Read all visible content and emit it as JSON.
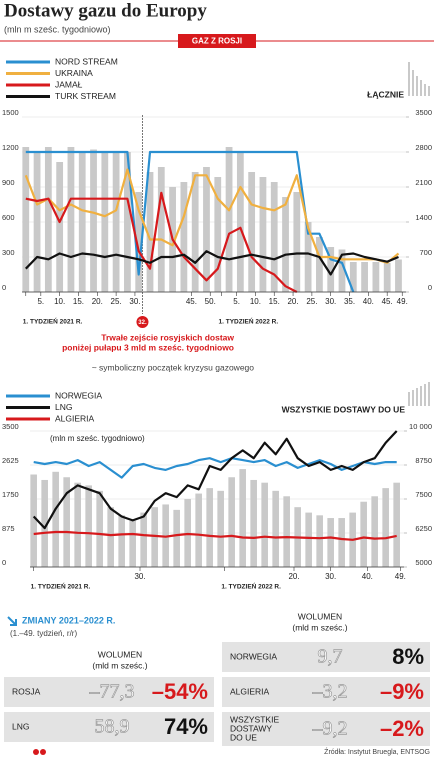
{
  "header": {
    "title": "Dostawy gazu do Europy",
    "subtitle": "(mln m sześc. tygodniowo)",
    "tag": "GAZ Z ROSJI"
  },
  "chart_data": [
    {
      "type": "line",
      "xlim": [
        0,
        102
      ],
      "x": [
        1,
        4,
        7,
        10,
        13,
        16,
        19,
        22,
        25,
        28,
        31,
        34,
        37,
        40,
        43,
        46,
        49,
        52,
        55,
        58,
        61,
        64,
        67,
        70,
        73,
        76,
        79,
        82,
        85,
        88,
        91,
        94,
        97,
        100
      ],
      "ylim": [
        0,
        1500
      ],
      "yticks": [
        0,
        300,
        600,
        900,
        1200,
        1500
      ],
      "y2lim": [
        0,
        3500
      ],
      "y2ticks": [
        0,
        700,
        1400,
        2100,
        2800,
        3500
      ],
      "grid": true,
      "xticks": [
        {
          "value": 1,
          "label": "1. TYDZIEŃ 2021 R."
        },
        {
          "value": 5,
          "label": "5."
        },
        {
          "value": 10,
          "label": "10."
        },
        {
          "value": 15,
          "label": "15."
        },
        {
          "value": 20,
          "label": "20."
        },
        {
          "value": 25,
          "label": "25."
        },
        {
          "value": 30,
          "label": "30."
        },
        {
          "value": 45,
          "label": "45."
        },
        {
          "value": 50,
          "label": "50."
        },
        {
          "value": 53,
          "label": "1. TYDZIEŃ 2022 R."
        },
        {
          "value": 57,
          "label": "5."
        },
        {
          "value": 62,
          "label": "10."
        },
        {
          "value": 67,
          "label": "15."
        },
        {
          "value": 72,
          "label": "20."
        },
        {
          "value": 77,
          "label": "25."
        },
        {
          "value": 82,
          "label": "30."
        },
        {
          "value": 87,
          "label": "35."
        },
        {
          "value": 92,
          "label": "40."
        },
        {
          "value": 97,
          "label": "45."
        },
        {
          "value": 101,
          "label": "49."
        }
      ],
      "series": [
        {
          "name": "ŁĄCZNIE",
          "type": "bar",
          "axis": "y2",
          "color": "#c9c9c9",
          "values": [
            2900,
            2800,
            2900,
            2600,
            2900,
            2800,
            2850,
            2800,
            2800,
            2800,
            2000,
            2400,
            2500,
            2100,
            2200,
            2400,
            2500,
            2300,
            2900,
            2800,
            2400,
            2300,
            2200,
            1900,
            2000,
            1400,
            1100,
            900,
            850,
            600,
            600,
            600,
            580,
            650
          ]
        },
        {
          "name": "NORD STREAM",
          "color": "#2a8fd0",
          "values": [
            1200,
            1200,
            1200,
            1200,
            1200,
            1200,
            1200,
            1200,
            1200,
            1200,
            150,
            1200,
            1200,
            1200,
            1200,
            1200,
            1200,
            1200,
            1200,
            1200,
            1200,
            1200,
            1200,
            1200,
            1200,
            500,
            500,
            280,
            250,
            0,
            null,
            null,
            null,
            null
          ]
        },
        {
          "name": "UKRAINA",
          "color": "#f0b040",
          "values": [
            1000,
            750,
            800,
            700,
            750,
            700,
            680,
            650,
            700,
            1050,
            700,
            450,
            450,
            400,
            650,
            1000,
            1000,
            800,
            700,
            900,
            750,
            720,
            700,
            750,
            1000,
            550,
            300,
            300,
            280,
            280,
            280,
            280,
            250,
            330
          ]
        },
        {
          "name": "JAMAŁ",
          "color": "#d7191c",
          "values": [
            800,
            780,
            800,
            600,
            800,
            800,
            800,
            800,
            800,
            800,
            350,
            200,
            850,
            450,
            300,
            200,
            100,
            200,
            500,
            550,
            300,
            200,
            150,
            50,
            0,
            null,
            null,
            null,
            null,
            null,
            null,
            null,
            null,
            null
          ]
        },
        {
          "name": "TURK STREAM",
          "color": "#111111",
          "values": [
            200,
            300,
            280,
            330,
            300,
            330,
            320,
            300,
            320,
            300,
            280,
            250,
            300,
            300,
            320,
            250,
            350,
            300,
            280,
            300,
            320,
            300,
            280,
            320,
            330,
            330,
            300,
            150,
            320,
            330,
            300,
            280,
            260,
            300
          ]
        }
      ],
      "annotation": {
        "x": 32,
        "label": "32.",
        "text": [
          "Trwałe zejście rosyjskich dostaw",
          "poniżej pułapu 3 mld m sześc. tygodniowo"
        ],
        "subtext": "~ symboliczny początek kryzysu gazowego"
      }
    },
    {
      "type": "line",
      "xlim": [
        0,
        102
      ],
      "y_label": "(mln m sześc. tygodniowo)",
      "x": [
        1,
        4,
        7,
        10,
        13,
        16,
        19,
        22,
        25,
        28,
        31,
        34,
        37,
        40,
        43,
        46,
        49,
        52,
        55,
        58,
        61,
        64,
        67,
        70,
        73,
        76,
        79,
        82,
        85,
        88,
        91,
        94,
        97,
        100
      ],
      "ylim": [
        0,
        3500
      ],
      "yticks": [
        0,
        875,
        1750,
        2625,
        3500
      ],
      "y2lim": [
        5000,
        10000
      ],
      "y2ticks": [
        5000,
        6250,
        7500,
        8750,
        {
          "value": 10000,
          "label": "10 000"
        }
      ],
      "grid": true,
      "xticks": [
        {
          "value": 1,
          "label": "1. TYDZIEŃ 2021 R."
        },
        {
          "value": 30,
          "label": "30."
        },
        {
          "value": 53,
          "label": "1. TYDZIEŃ 2022 R."
        },
        {
          "value": 72,
          "label": "20."
        },
        {
          "value": 82,
          "label": "30."
        },
        {
          "value": 92,
          "label": "40."
        },
        {
          "value": 101,
          "label": "49."
        }
      ],
      "series": [
        {
          "name": "WSZYSTKIE DOSTAWY DO UE",
          "type": "bar",
          "axis": "y2",
          "color": "#c9c9c9",
          "values": [
            8400,
            8200,
            8500,
            8300,
            8100,
            8000,
            7800,
            7200,
            6900,
            6700,
            7000,
            7200,
            7300,
            7100,
            7500,
            7700,
            7900,
            7800,
            8300,
            8600,
            8200,
            8100,
            7800,
            7600,
            7200,
            7000,
            6900,
            6800,
            6800,
            7000,
            7400,
            7600,
            7900,
            8100
          ]
        },
        {
          "name": "NORWEGIA",
          "color": "#2a8fd0",
          "values": [
            2700,
            2650,
            2700,
            2650,
            2750,
            2600,
            2700,
            2500,
            2300,
            2600,
            2650,
            2550,
            2500,
            2600,
            2650,
            2750,
            2800,
            2700,
            2800,
            2750,
            2700,
            2750,
            2600,
            2700,
            2550,
            2650,
            2750,
            2650,
            2500,
            2600,
            2700,
            2650,
            2700,
            2700
          ]
        },
        {
          "name": "LNG",
          "color": "#111111",
          "values": [
            1300,
            1000,
            1500,
            1900,
            2100,
            2000,
            1900,
            1500,
            1300,
            1200,
            1300,
            1700,
            1900,
            1800,
            2100,
            2000,
            2600,
            2500,
            2800,
            3000,
            2800,
            3200,
            2900,
            3300,
            2800,
            2600,
            2700,
            2500,
            2600,
            2500,
            2700,
            2800,
            3200,
            3500
          ]
        },
        {
          "name": "ALGIERIA",
          "color": "#d7191c",
          "values": [
            850,
            880,
            900,
            900,
            880,
            870,
            850,
            820,
            840,
            850,
            820,
            800,
            780,
            820,
            850,
            830,
            800,
            780,
            800,
            760,
            750,
            780,
            760,
            770,
            760,
            750,
            740,
            760,
            720,
            700,
            760,
            730,
            740,
            800
          ]
        }
      ]
    }
  ],
  "changes": {
    "title": "ZMIANY 2021–2022 R.",
    "period": "(1.–49. tydzień, r/r)",
    "left": {
      "header": [
        "WOLUMEN",
        "(mld m sześc.)"
      ],
      "rows": [
        {
          "name": [
            "ROSJA"
          ],
          "volume": "–77,3",
          "change": "–54%",
          "color": "#d7191c"
        },
        {
          "name": [
            "LNG"
          ],
          "volume": "58,9",
          "change": "74%",
          "color": "#111111"
        }
      ]
    },
    "right": {
      "header": [
        "WOLUMEN",
        "(mld m sześc.)"
      ],
      "rows": [
        {
          "name": [
            "NORWEGIA"
          ],
          "volume": "9,7",
          "change": "8%",
          "color": "#111111"
        },
        {
          "name": [
            "ALGIERIA"
          ],
          "volume": "–3,2",
          "change": "–9%",
          "color": "#d7191c"
        },
        {
          "name": [
            "WSZYSTKIE",
            "DOSTAWY",
            "DO UE"
          ],
          "volume": "–9,2",
          "change": "–2%",
          "color": "#d7191c"
        }
      ]
    }
  },
  "footer": {
    "source": "Źródła: Instytut Bruegla, ENTSOG"
  }
}
